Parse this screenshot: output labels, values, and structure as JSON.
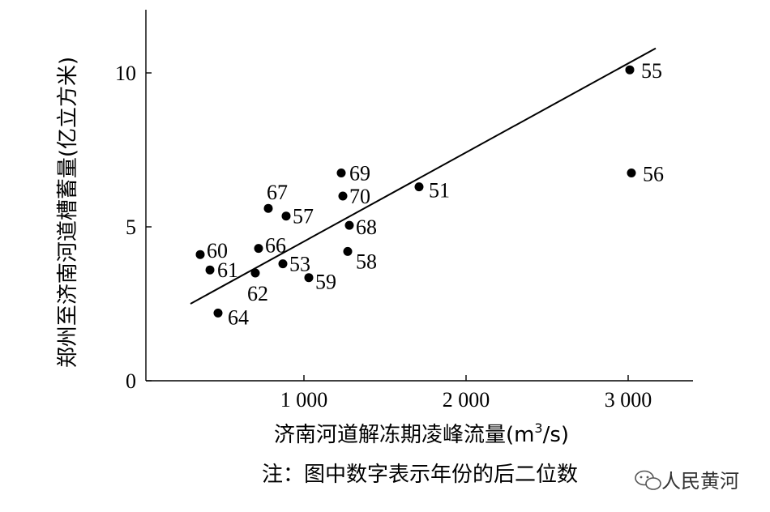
{
  "chart_data": {
    "type": "scatter",
    "title": "",
    "xlabel": "济南河道解冻期凌峰流量(m³/s)",
    "xlabel_main": "济南河道解冻期凌峰流量(m",
    "xlabel_sup": "3",
    "xlabel_tail": "/s)",
    "ylabel": "郑州至济南河道槽蓄量(亿立方米)",
    "xlim": [
      0,
      3400
    ],
    "ylim": [
      0,
      12
    ],
    "x_ticks": [
      {
        "value": 1000,
        "label": "1 000"
      },
      {
        "value": 2000,
        "label": "2 000"
      },
      {
        "value": 3000,
        "label": "3 000"
      }
    ],
    "y_ticks": [
      {
        "value": 0,
        "label": "0"
      },
      {
        "value": 5,
        "label": "5"
      },
      {
        "value": 10,
        "label": "10"
      }
    ],
    "points": [
      {
        "label": "55",
        "x": 3010,
        "y": 10.1
      },
      {
        "label": "56",
        "x": 3020,
        "y": 6.75
      },
      {
        "label": "69",
        "x": 1230,
        "y": 6.75
      },
      {
        "label": "70",
        "x": 1240,
        "y": 6.0
      },
      {
        "label": "51",
        "x": 1710,
        "y": 6.3
      },
      {
        "label": "67",
        "x": 780,
        "y": 5.6
      },
      {
        "label": "57",
        "x": 890,
        "y": 5.35
      },
      {
        "label": "68",
        "x": 1280,
        "y": 5.05
      },
      {
        "label": "60",
        "x": 360,
        "y": 4.1
      },
      {
        "label": "66",
        "x": 720,
        "y": 4.3
      },
      {
        "label": "61",
        "x": 420,
        "y": 3.6
      },
      {
        "label": "53",
        "x": 870,
        "y": 3.8
      },
      {
        "label": "58",
        "x": 1270,
        "y": 4.2
      },
      {
        "label": "62",
        "x": 700,
        "y": 3.5
      },
      {
        "label": "59",
        "x": 1030,
        "y": 3.35
      },
      {
        "label": "64",
        "x": 470,
        "y": 2.2
      }
    ],
    "trendline": {
      "x": [
        300,
        3170
      ],
      "y": [
        2.5,
        10.8
      ]
    },
    "grid": false,
    "legend": "none"
  },
  "note": "注：图中数字表示年份的后二位数",
  "watermark": "人民黄河"
}
